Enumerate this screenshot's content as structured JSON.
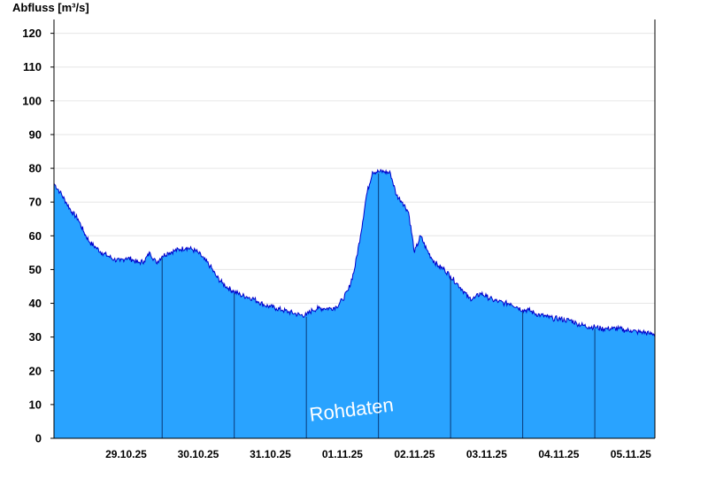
{
  "chart_data": {
    "type": "area",
    "ylabel": "Abfluss [m³/s]",
    "ylim": [
      0,
      122
    ],
    "y_ticks": [
      0,
      10,
      20,
      30,
      40,
      50,
      60,
      70,
      80,
      90,
      100,
      110,
      120
    ],
    "x_ticks": [
      "29.10.25",
      "30.10.25",
      "31.10.25",
      "01.11.25",
      "02.11.25",
      "03.11.25",
      "04.11.25",
      "05.11.25"
    ],
    "xlim": [
      "28.10.25 12:00",
      "05.11.25 20:00"
    ],
    "grid": true,
    "watermark": "Rohdaten",
    "colors": {
      "fill": "#29a3ff",
      "line": "#0000cc",
      "day_line": "#0a3a78",
      "grid": "#e6e6e6"
    },
    "series": [
      {
        "x": [
          "28.10.25 12:00",
          "28.10.25 14:00",
          "28.10.25 16:00",
          "28.10.25 18:00",
          "28.10.25 20:00",
          "28.10.25 22:00",
          "29.10.25 00:00",
          "29.10.25 02:00",
          "29.10.25 04:00",
          "29.10.25 06:00",
          "29.10.25 08:00",
          "29.10.25 10:00",
          "29.10.25 12:00",
          "29.10.25 14:00",
          "29.10.25 16:00",
          "29.10.25 18:00",
          "29.10.25 20:00",
          "29.10.25 22:00",
          "30.10.25 00:00",
          "30.10.25 02:00",
          "30.10.25 04:00",
          "30.10.25 06:00",
          "30.10.25 08:00",
          "30.10.25 10:00",
          "30.10.25 12:00",
          "30.10.25 14:00",
          "30.10.25 16:00",
          "30.10.25 18:00",
          "30.10.25 20:00",
          "30.10.25 22:00",
          "31.10.25 00:00",
          "31.10.25 02:00",
          "31.10.25 04:00",
          "31.10.25 06:00",
          "31.10.25 08:00",
          "31.10.25 10:00",
          "31.10.25 12:00",
          "31.10.25 14:00",
          "31.10.25 16:00",
          "31.10.25 18:00",
          "31.10.25 20:00",
          "31.10.25 22:00",
          "01.11.25 00:00",
          "01.11.25 02:00",
          "01.11.25 04:00",
          "01.11.25 06:00",
          "01.11.25 08:00",
          "01.11.25 10:00",
          "01.11.25 12:00",
          "01.11.25 14:00",
          "01.11.25 16:00",
          "01.11.25 18:00",
          "01.11.25 20:00",
          "01.11.25 22:00",
          "02.11.25 00:00",
          "02.11.25 02:00",
          "02.11.25 04:00",
          "02.11.25 06:00",
          "02.11.25 08:00",
          "02.11.25 10:00",
          "02.11.25 12:00",
          "02.11.25 14:00",
          "02.11.25 16:00",
          "02.11.25 18:00",
          "02.11.25 20:00",
          "02.11.25 22:00",
          "03.11.25 00:00",
          "03.11.25 02:00",
          "03.11.25 04:00",
          "03.11.25 06:00",
          "03.11.25 08:00",
          "03.11.25 10:00",
          "03.11.25 12:00",
          "03.11.25 14:00",
          "03.11.25 16:00",
          "03.11.25 18:00",
          "03.11.25 20:00",
          "03.11.25 22:00",
          "04.11.25 00:00",
          "04.11.25 02:00",
          "04.11.25 04:00",
          "04.11.25 06:00",
          "04.11.25 08:00",
          "04.11.25 10:00",
          "04.11.25 12:00",
          "04.11.25 14:00",
          "04.11.25 16:00",
          "04.11.25 18:00",
          "04.11.25 20:00",
          "04.11.25 22:00",
          "05.11.25 00:00",
          "05.11.25 02:00",
          "05.11.25 04:00",
          "05.11.25 06:00",
          "05.11.25 08:00",
          "05.11.25 10:00",
          "05.11.25 12:00",
          "05.11.25 14:00",
          "05.11.25 16:00",
          "05.11.25 18:00",
          "05.11.25 20:00"
        ],
        "values": [
          75.5,
          73.0,
          70.0,
          67.0,
          65.0,
          61.0,
          58.0,
          56.5,
          55.0,
          54.0,
          53.0,
          52.5,
          53.5,
          53.0,
          52.0,
          52.5,
          55.0,
          52.0,
          54.0,
          55.0,
          55.5,
          56.0,
          56.5,
          56.0,
          55.0,
          53.0,
          51.0,
          48.0,
          46.0,
          44.5,
          43.5,
          42.5,
          42.0,
          41.5,
          40.5,
          39.5,
          39.0,
          38.5,
          38.0,
          37.5,
          37.0,
          36.5,
          36.5,
          38.0,
          38.5,
          38.5,
          38.5,
          39.0,
          41.0,
          44.0,
          50.0,
          60.0,
          72.0,
          79.0,
          79.0,
          79.0,
          78.5,
          72.0,
          70.0,
          67.0,
          55.0,
          60.0,
          56.0,
          53.0,
          51.0,
          50.0,
          48.0,
          46.0,
          44.0,
          41.5,
          41.5,
          43.0,
          42.0,
          41.0,
          40.5,
          40.0,
          40.0,
          39.0,
          38.0,
          38.0,
          37.0,
          36.5,
          36.0,
          35.5,
          35.5,
          35.0,
          35.0,
          34.0,
          33.5,
          33.0,
          33.0,
          32.5,
          32.5,
          32.5,
          32.5,
          32.0,
          32.0,
          31.5,
          31.5,
          31.0,
          31.0
        ]
      }
    ]
  }
}
